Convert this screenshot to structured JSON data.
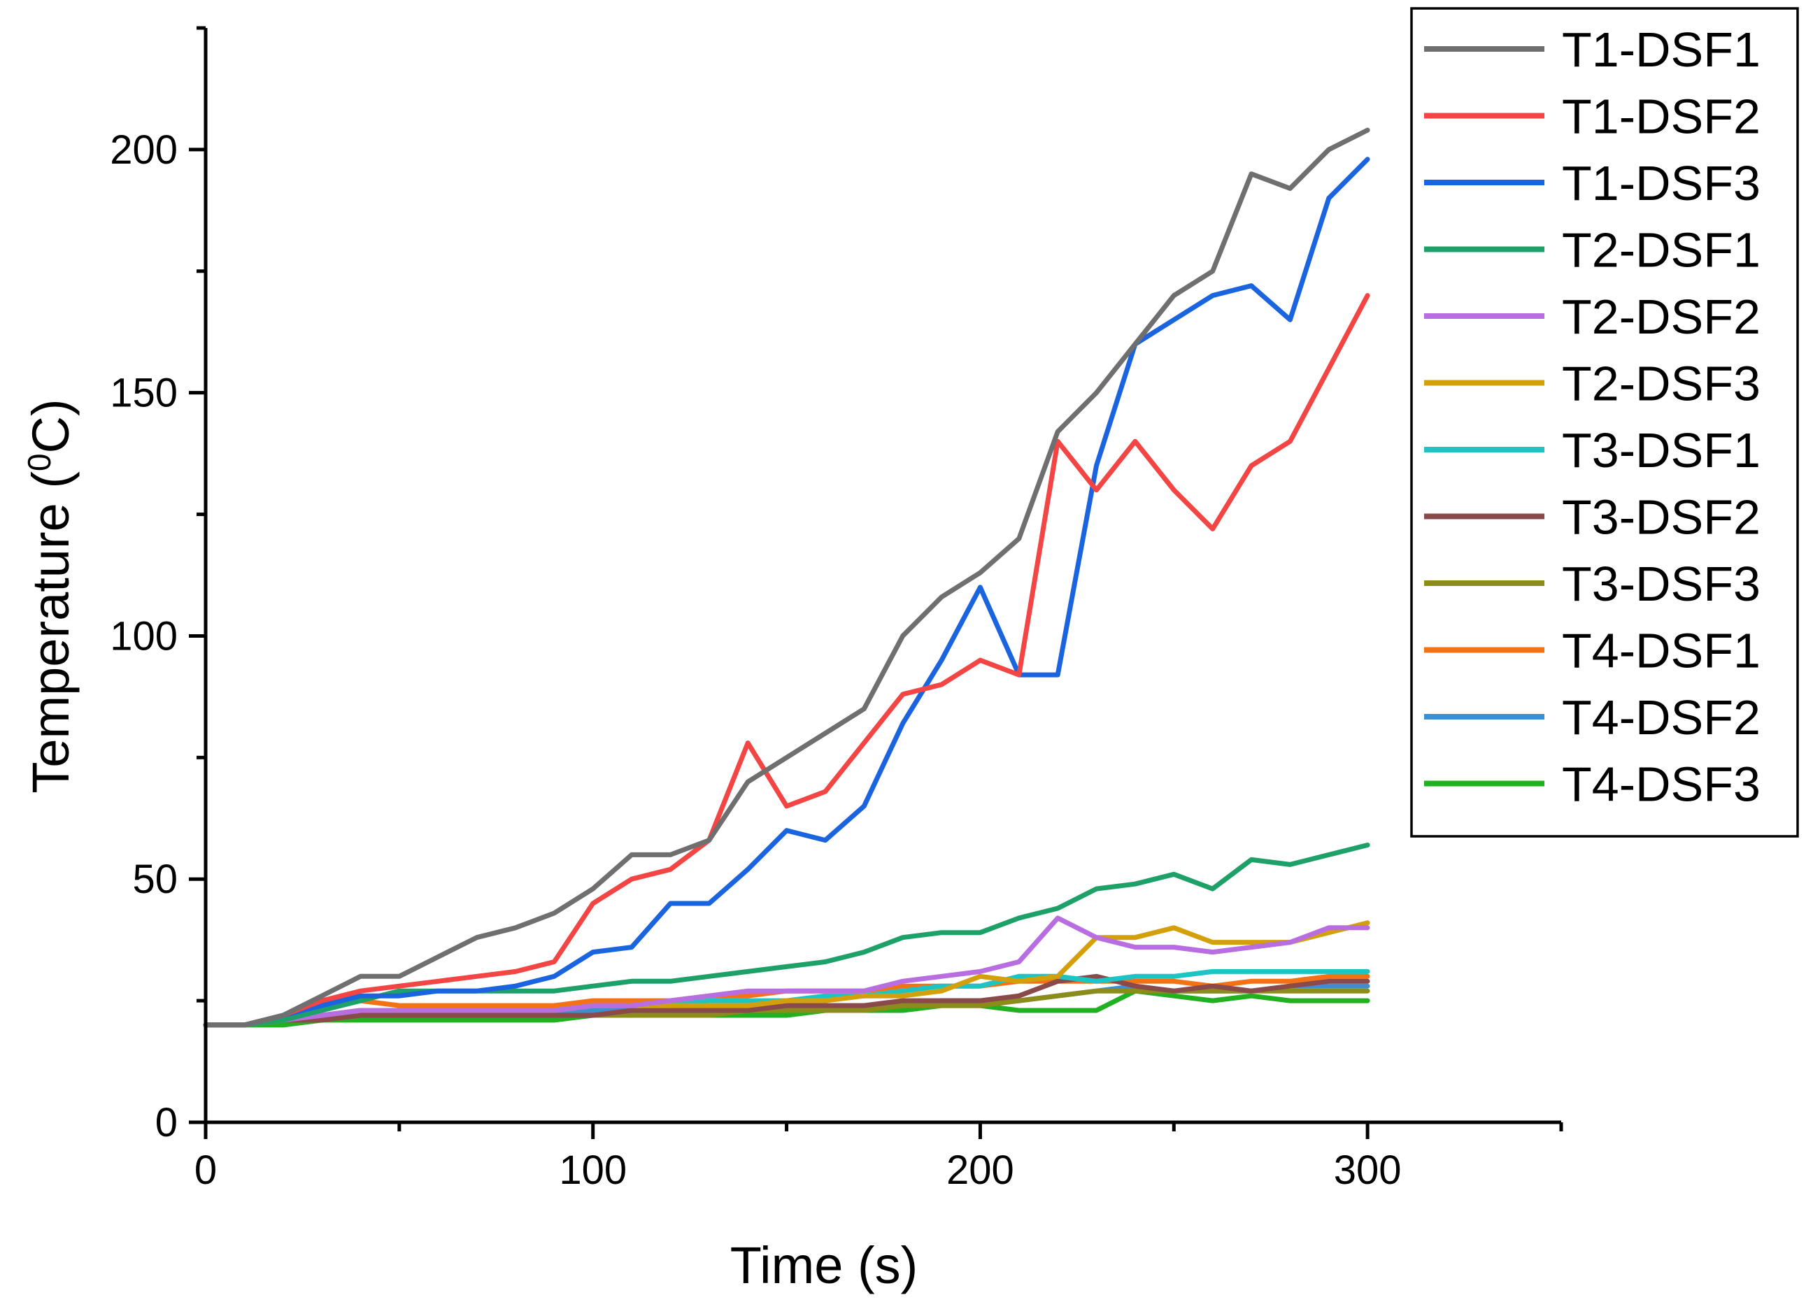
{
  "chart_data": {
    "type": "line",
    "title": "",
    "xlabel": "Time (s)",
    "ylabel_main": "Temperature (",
    "ylabel_sup": "0",
    "ylabel_tail": "C)",
    "xlim": [
      0,
      350
    ],
    "ylim": [
      0,
      225
    ],
    "x_ticks": [
      0,
      100,
      200,
      300
    ],
    "y_ticks": [
      0,
      50,
      100,
      150,
      200
    ],
    "x_tick_labels": [
      "0",
      "100",
      "200",
      "300"
    ],
    "y_tick_labels": [
      "0",
      "50",
      "100",
      "150",
      "200"
    ],
    "grid": false,
    "legend_position": "top-right",
    "x": [
      0,
      10,
      20,
      30,
      40,
      50,
      60,
      70,
      80,
      90,
      100,
      110,
      120,
      130,
      140,
      150,
      160,
      170,
      180,
      190,
      200,
      210,
      220,
      230,
      240,
      250,
      260,
      270,
      280,
      290,
      300
    ],
    "series": [
      {
        "name": "T1-DSF1",
        "color": "#6f6f6f",
        "values": [
          20,
          20,
          22,
          26,
          30,
          30,
          34,
          38,
          40,
          43,
          48,
          55,
          55,
          58,
          70,
          75,
          80,
          85,
          100,
          108,
          113,
          120,
          142,
          150,
          160,
          170,
          175,
          195,
          192,
          200,
          204
        ]
      },
      {
        "name": "T1-DSF2",
        "color": "#f44545",
        "values": [
          20,
          20,
          22,
          25,
          27,
          28,
          29,
          30,
          31,
          33,
          45,
          50,
          52,
          58,
          78,
          65,
          68,
          78,
          88,
          90,
          95,
          92,
          140,
          130,
          140,
          130,
          122,
          135,
          140,
          155,
          170
        ]
      },
      {
        "name": "T1-DSF3",
        "color": "#1a64e0",
        "values": [
          20,
          20,
          22,
          24,
          26,
          26,
          27,
          27,
          28,
          30,
          35,
          36,
          45,
          45,
          52,
          60,
          58,
          65,
          82,
          95,
          110,
          92,
          92,
          135,
          160,
          165,
          170,
          172,
          165,
          190,
          198
        ]
      },
      {
        "name": "T2-DSF1",
        "color": "#1ea069",
        "values": [
          20,
          20,
          21,
          23,
          25,
          27,
          27,
          27,
          27,
          27,
          28,
          29,
          29,
          30,
          31,
          32,
          33,
          35,
          38,
          39,
          39,
          42,
          44,
          48,
          49,
          51,
          48,
          54,
          53,
          55,
          57
        ]
      },
      {
        "name": "T2-DSF2",
        "color": "#b86ee0",
        "values": [
          20,
          20,
          21,
          22,
          23,
          23,
          23,
          23,
          23,
          23,
          24,
          24,
          25,
          26,
          27,
          27,
          27,
          27,
          29,
          30,
          31,
          33,
          42,
          38,
          36,
          36,
          35,
          36,
          37,
          40,
          40
        ]
      },
      {
        "name": "T2-DSF3",
        "color": "#d4a00a",
        "values": [
          20,
          20,
          21,
          22,
          23,
          23,
          23,
          23,
          23,
          23,
          24,
          24,
          24,
          24,
          24,
          25,
          25,
          26,
          26,
          27,
          30,
          29,
          30,
          38,
          38,
          40,
          37,
          37,
          37,
          39,
          41
        ]
      },
      {
        "name": "T3-DSF1",
        "color": "#1ec4c4",
        "values": [
          20,
          20,
          21,
          22,
          23,
          23,
          23,
          23,
          23,
          23,
          24,
          24,
          24,
          25,
          25,
          25,
          26,
          26,
          27,
          28,
          28,
          30,
          30,
          29,
          30,
          30,
          31,
          31,
          31,
          31,
          31
        ]
      },
      {
        "name": "T3-DSF2",
        "color": "#8a4a4a",
        "values": [
          20,
          20,
          21,
          21,
          22,
          22,
          22,
          22,
          22,
          22,
          22,
          23,
          23,
          23,
          23,
          24,
          24,
          24,
          25,
          25,
          25,
          26,
          29,
          30,
          28,
          27,
          28,
          27,
          28,
          29,
          29
        ]
      },
      {
        "name": "T3-DSF3",
        "color": "#8c8c1a",
        "values": [
          20,
          20,
          21,
          21,
          22,
          22,
          22,
          22,
          22,
          22,
          22,
          22,
          22,
          22,
          23,
          23,
          23,
          23,
          24,
          24,
          24,
          25,
          26,
          27,
          27,
          27,
          27,
          27,
          27,
          27,
          27
        ]
      },
      {
        "name": "T4-DSF1",
        "color": "#f47216",
        "values": [
          20,
          20,
          22,
          24,
          25,
          24,
          24,
          24,
          24,
          24,
          25,
          25,
          25,
          26,
          26,
          27,
          27,
          27,
          28,
          28,
          28,
          29,
          29,
          29,
          29,
          29,
          28,
          29,
          29,
          30,
          30
        ]
      },
      {
        "name": "T4-DSF2",
        "color": "#3f8fd0",
        "values": [
          20,
          20,
          21,
          22,
          22,
          22,
          22,
          22,
          22,
          22,
          23,
          23,
          23,
          23,
          23,
          24,
          24,
          24,
          24,
          25,
          25,
          25,
          26,
          27,
          28,
          27,
          27,
          27,
          28,
          28,
          28
        ]
      },
      {
        "name": "T4-DSF3",
        "color": "#20b020",
        "values": [
          20,
          20,
          20,
          21,
          21,
          21,
          21,
          21,
          21,
          21,
          22,
          22,
          22,
          22,
          22,
          22,
          23,
          23,
          23,
          24,
          24,
          23,
          23,
          23,
          27,
          26,
          25,
          26,
          25,
          25,
          25
        ]
      }
    ]
  }
}
